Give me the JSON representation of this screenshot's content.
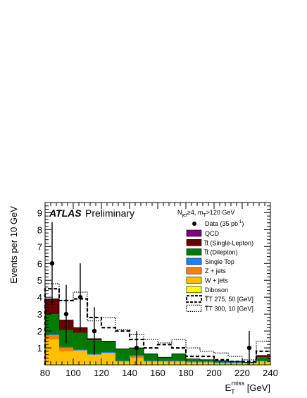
{
  "chart_data": {
    "type": "bar",
    "stacked": true,
    "xlabel_main": "E",
    "xlabel_sub": "T",
    "xlabel_sup": "miss",
    "xlabel_unit": " [GeV]",
    "ylabel": "Events per 10 GeV",
    "xlim": [
      80,
      240
    ],
    "ylim": [
      0,
      9.6
    ],
    "x_ticks": [
      80,
      100,
      120,
      140,
      160,
      180,
      200,
      220,
      240
    ],
    "y_ticks": [
      1,
      2,
      3,
      4,
      5,
      6,
      7,
      8,
      9
    ],
    "bin_edges": [
      80,
      90,
      100,
      110,
      120,
      130,
      140,
      150,
      160,
      170,
      180,
      190,
      200,
      210,
      220,
      230,
      240
    ],
    "series": [
      {
        "name": "Diboson",
        "color": "#ffff00",
        "values": [
          0.05,
          0.05,
          0.05,
          0.05,
          0.05,
          0.05,
          0.05,
          0.05,
          0.05,
          0.05,
          0.05,
          0.05,
          0.05,
          0.05,
          0.05,
          0.05
        ]
      },
      {
        "name": "W + jets",
        "color": "#ffc000",
        "values": [
          1.45,
          0.75,
          0.8,
          0.55,
          0.65,
          0.15,
          0.35,
          0.15,
          0.15,
          0.15,
          0.1,
          0.1,
          0.05,
          0.05,
          0.05,
          0.15
        ]
      },
      {
        "name": "Z + jets",
        "color": "#ff7f00",
        "values": [
          0.25,
          0.2,
          0.0,
          0.0,
          0.0,
          0.0,
          0.1,
          0.0,
          0.0,
          0.0,
          0.0,
          0.0,
          0.0,
          0.0,
          0.0,
          0.0
        ]
      },
      {
        "name": "Single Top",
        "color": "#1e7fff",
        "values": [
          0.05,
          0.05,
          0.05,
          0.05,
          0.05,
          0.05,
          0.05,
          0.05,
          0.05,
          0.05,
          0.05,
          0.05,
          0.05,
          0.05,
          0.05,
          0.05
        ]
      },
      {
        "name": "t̅t (Dilepton)",
        "color": "#007a00",
        "values": [
          1.2,
          1.0,
          1.0,
          0.8,
          0.65,
          0.7,
          0.45,
          0.4,
          0.2,
          0.4,
          0.15,
          0.1,
          0.1,
          0.05,
          0.0,
          0.2
        ]
      },
      {
        "name": "t̅t (Single-Lepton)",
        "color": "#6b0000",
        "values": [
          0.9,
          0.6,
          0.3,
          0.1,
          0.0,
          0.0,
          0.0,
          0.0,
          0.0,
          0.0,
          0.0,
          0.0,
          0.0,
          0.0,
          0.0,
          0.1
        ]
      },
      {
        "name": "QCD",
        "color": "#800080",
        "values": [
          0,
          0,
          0,
          0,
          0,
          0,
          0,
          0,
          0,
          0,
          0,
          0,
          0,
          0,
          0,
          0
        ]
      }
    ],
    "signals": [
      {
        "name": "T̅T 275, 50 [GeV]",
        "style": "dashed",
        "values": [
          4.5,
          3.8,
          3.9,
          2.8,
          2.2,
          2.0,
          1.5,
          1.0,
          1.2,
          1.0,
          0.5,
          0.5,
          0.3,
          0.2,
          0.2,
          0.8
        ]
      },
      {
        "name": "T̅T 300, 10 [GeV]",
        "style": "dotted",
        "values": [
          4.8,
          3.8,
          4.3,
          2.6,
          2.8,
          2.1,
          1.8,
          1.5,
          1.3,
          1.5,
          1.0,
          0.8,
          0.7,
          0.5,
          0.3,
          1.4
        ]
      }
    ],
    "data_points": {
      "name": "Data (35 pb",
      "name_sup": "-1",
      "name_end": ")",
      "x": [
        85,
        95,
        105,
        115,
        145,
        225
      ],
      "y": [
        6,
        3,
        4,
        2,
        1,
        1
      ],
      "err_up": [
        2.45,
        1.73,
        2.0,
        1.41,
        1.0,
        1.0
      ],
      "err_down": [
        2.45,
        1.73,
        2.0,
        1.41,
        1.0,
        1.0
      ]
    },
    "legend_order": [
      "QCD",
      "t̅t (Single-Lepton)",
      "t̅t (Dilepton)",
      "Single Top",
      "Z + jets",
      "W + jets",
      "Diboson"
    ],
    "legend_placement": "top-right",
    "grid": false,
    "experiment_label": "ATLAS",
    "status_label": "Preliminary",
    "selection_label": {
      "a": "N",
      "a_sub": "jet",
      "b": "≥4, m",
      "b_sub": "T",
      "c": ">120 GeV"
    }
  }
}
